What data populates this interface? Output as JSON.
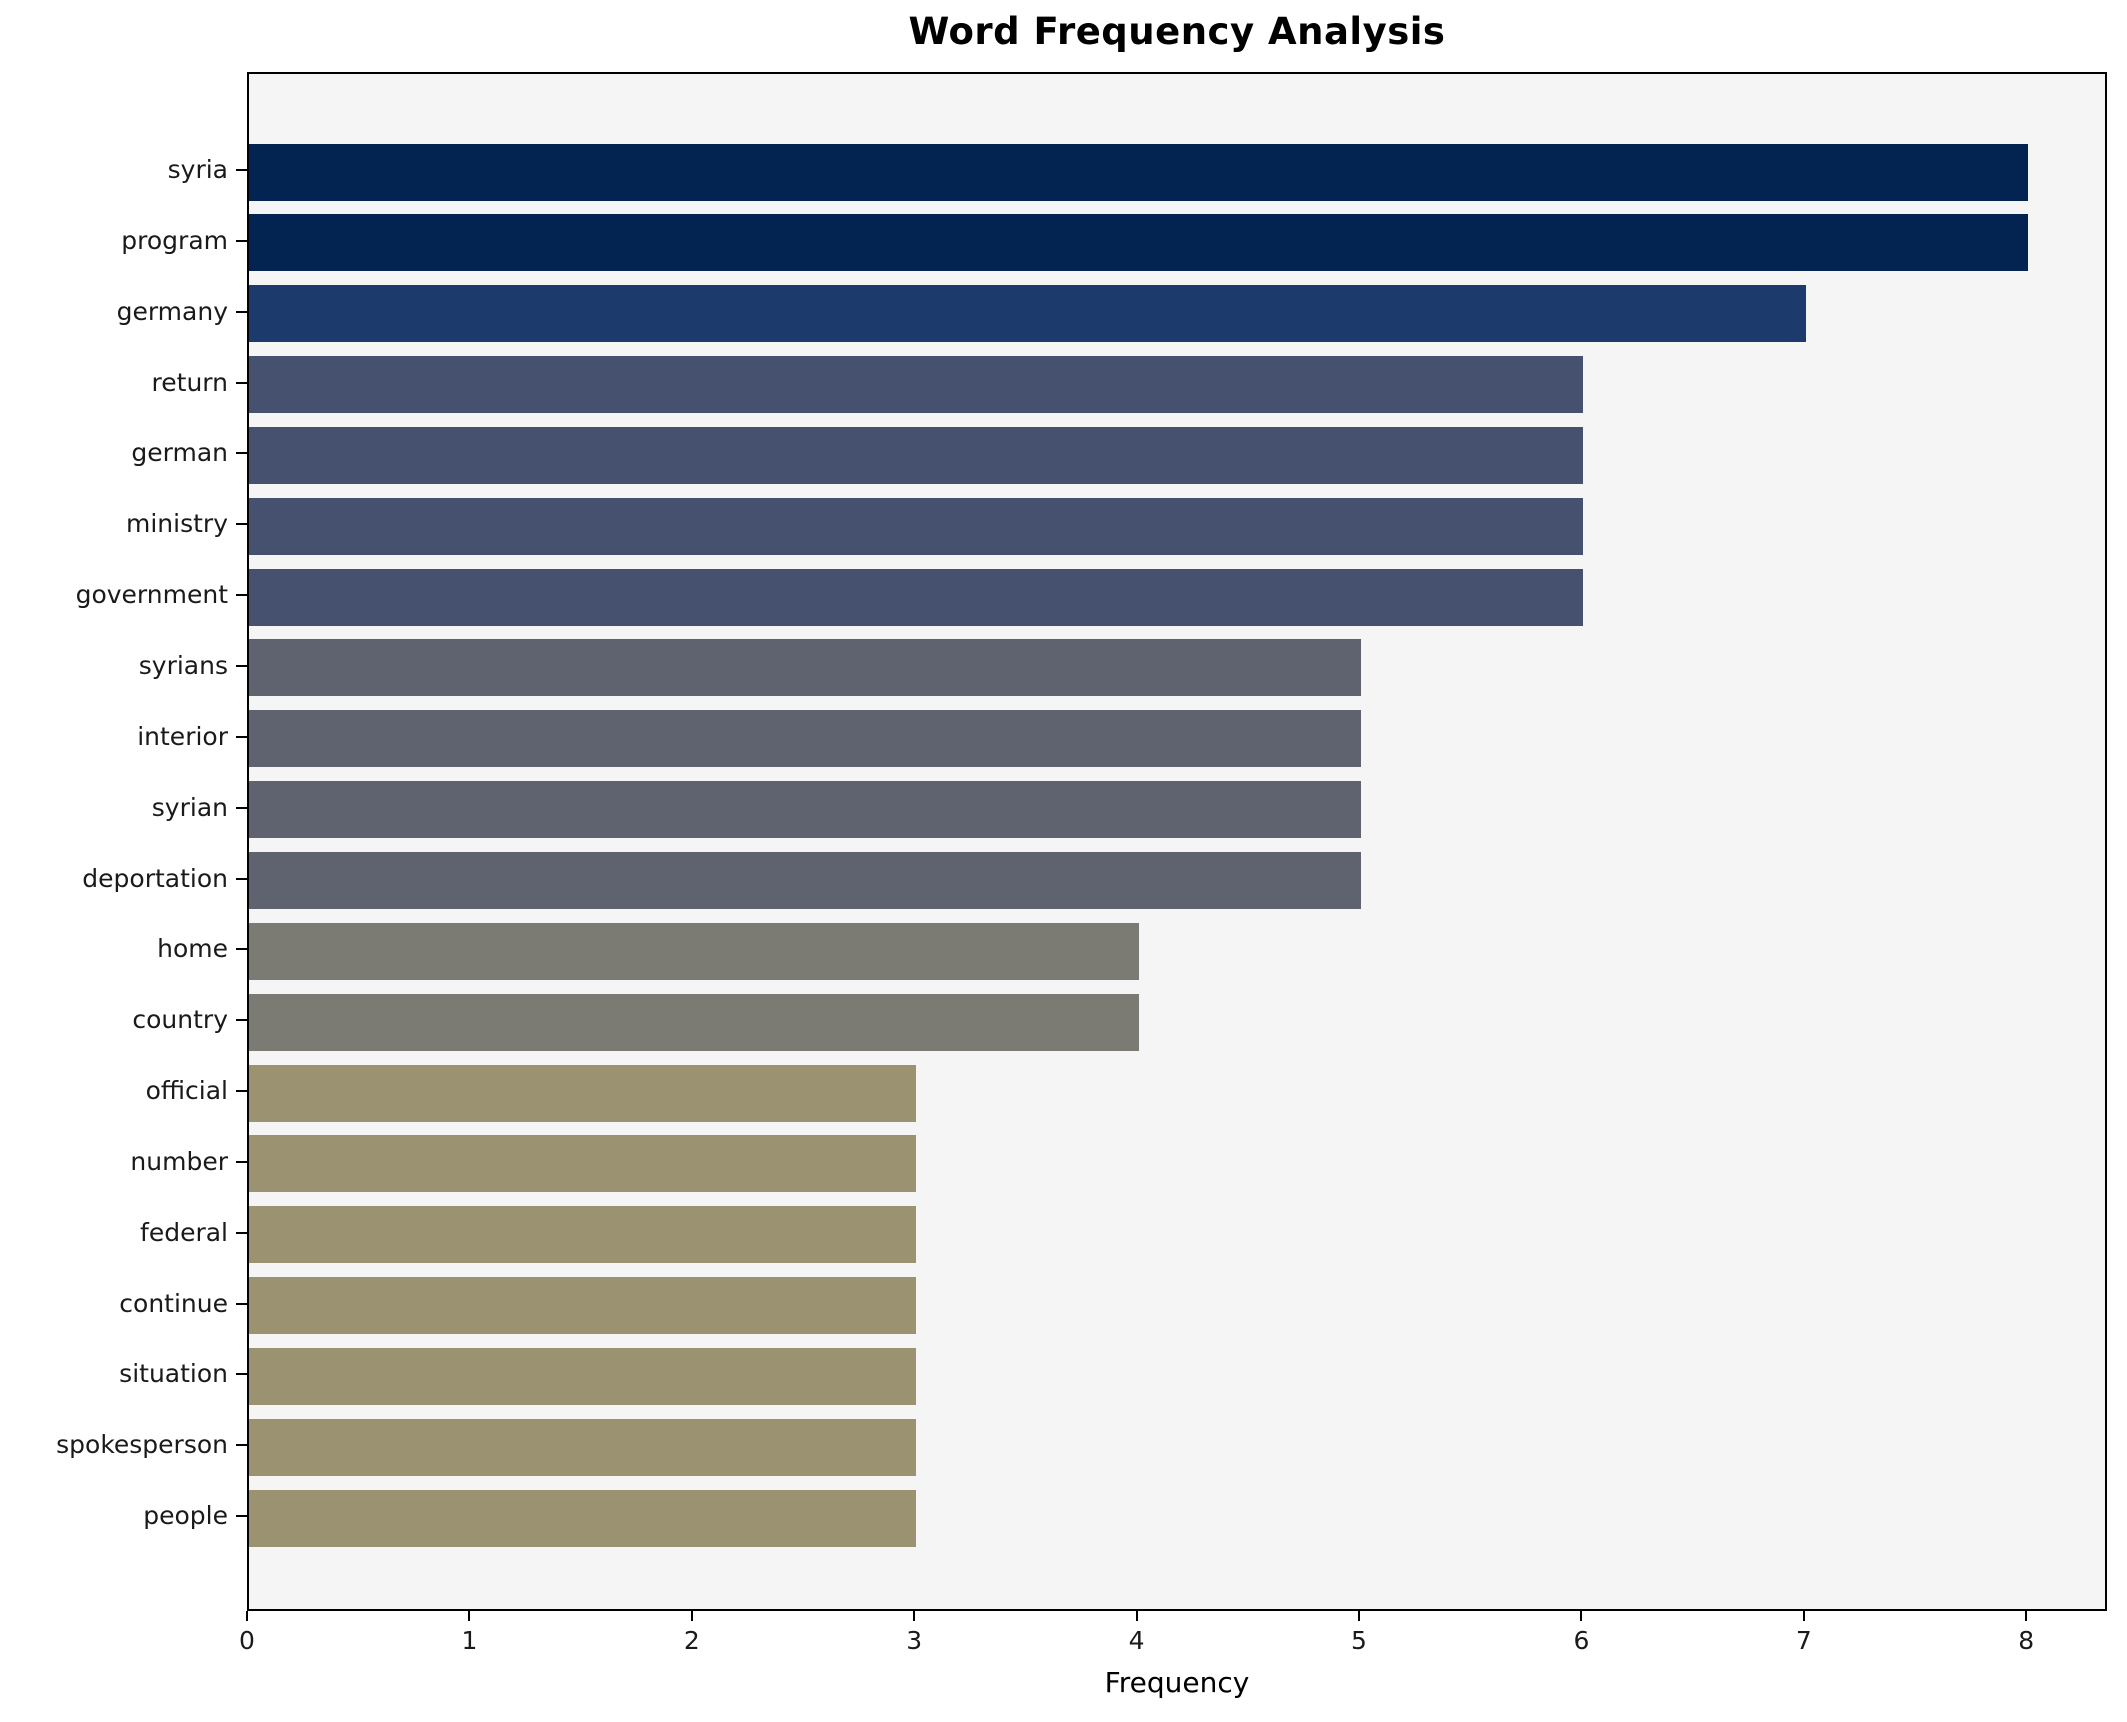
{
  "chart_data": {
    "type": "bar",
    "orientation": "horizontal",
    "title": "Word Frequency Analysis",
    "xlabel": "Frequency",
    "ylabel": "",
    "categories": [
      "syria",
      "program",
      "germany",
      "return",
      "german",
      "ministry",
      "government",
      "syrians",
      "interior",
      "syrian",
      "deportation",
      "home",
      "country",
      "official",
      "number",
      "federal",
      "continue",
      "situation",
      "spokesperson",
      "people"
    ],
    "values": [
      8,
      8,
      7,
      6,
      6,
      6,
      6,
      5,
      5,
      5,
      5,
      4,
      4,
      3,
      3,
      3,
      3,
      3,
      3,
      3
    ],
    "x_ticks": [
      0,
      1,
      2,
      3,
      4,
      5,
      6,
      7,
      8
    ],
    "xlim": [
      0,
      8.36
    ],
    "grid": false,
    "legend": null,
    "bar_colors_by_value": {
      "8": "#032350",
      "7": "#1d3a6d",
      "6": "#465170",
      "5": "#5f6370",
      "4": "#7b7b74",
      "3": "#9a9271"
    },
    "plot_background": "#f5f5f5",
    "figure_background": "#ffffff",
    "spine_color": "#000000"
  }
}
